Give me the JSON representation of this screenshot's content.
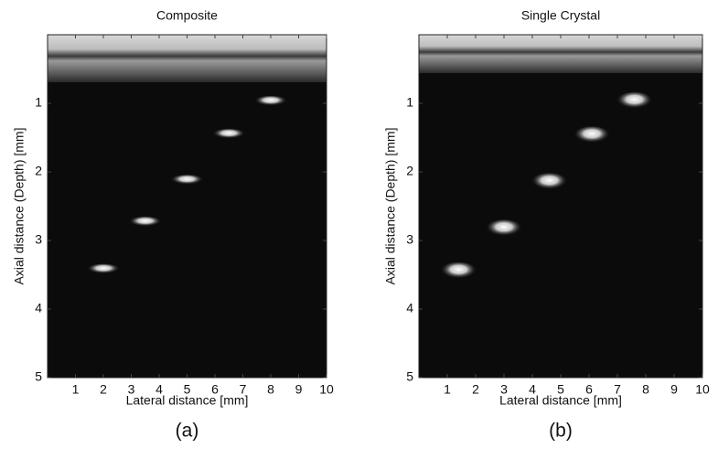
{
  "chart_data": [
    {
      "type": "image",
      "title": "Composite",
      "caption": "(a)",
      "x_label": "Lateral distance [mm]",
      "y_label": "Axial distance (Depth) [mm]",
      "xlim": [
        0,
        10
      ],
      "ylim": [
        5,
        0
      ],
      "xticks": [
        1,
        2,
        3,
        4,
        5,
        6,
        7,
        8,
        9,
        10
      ],
      "yticks": [
        1,
        2,
        3,
        4,
        5
      ],
      "x": [
        2.0,
        3.5,
        5.0,
        6.5,
        8.0
      ],
      "values": [
        3.42,
        2.73,
        2.12,
        1.45,
        0.97
      ]
    },
    {
      "type": "image",
      "title": "Single Crystal",
      "caption": "(b)",
      "x_label": "Lateral distance [mm]",
      "y_label": "Axial distance (Depth) [mm]",
      "xlim": [
        0,
        10
      ],
      "ylim": [
        5,
        0
      ],
      "xticks": [
        1,
        2,
        3,
        4,
        5,
        6,
        7,
        8,
        9,
        10
      ],
      "yticks": [
        1,
        2,
        3,
        4,
        5
      ],
      "x": [
        1.4,
        3.0,
        4.6,
        6.1,
        7.6
      ],
      "values": [
        3.45,
        2.83,
        2.15,
        1.47,
        0.97
      ]
    }
  ]
}
